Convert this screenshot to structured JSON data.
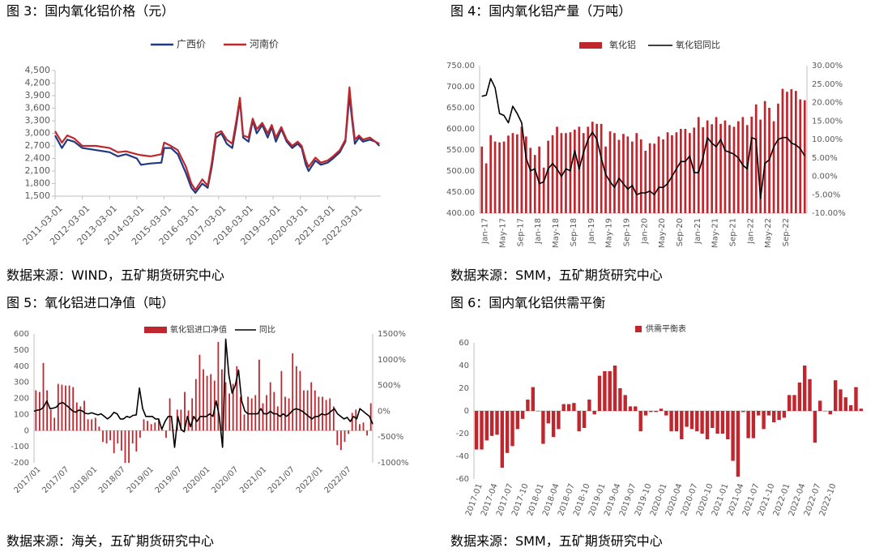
{
  "panels": [
    {
      "title": "图 3：国内氧化铝价格（元）",
      "source": "数据来源：WIND，五矿期货研究中心"
    },
    {
      "title": "图 4：国内氧化铝产量（万吨）",
      "source": "数据来源：SMM，五矿期货研究中心"
    },
    {
      "title": "图 5：氧化铝进口净值（吨）",
      "source": "数据来源：海关，五矿期货研究中心"
    },
    {
      "title": "图 6：国内氧化铝供需平衡",
      "source": "数据来源：SMM，五矿期货研究中心"
    }
  ],
  "colors": {
    "red": "#c0262d",
    "navy": "#1f3a80",
    "black": "#000000",
    "axis": "#bfbfbf",
    "text": "#595959"
  },
  "chart_data": [
    {
      "type": "line",
      "title": "图 3：国内氧化铝价格（元）",
      "ylim": [
        1500,
        4500
      ],
      "yticks": [
        "1,500",
        "1,800",
        "2,100",
        "2,400",
        "2,700",
        "3,000",
        "3,300",
        "3,600",
        "3,900",
        "4,200",
        "4,500"
      ],
      "xticks": [
        "2011-03-01",
        "2012-03-01",
        "2013-03-01",
        "2014-03-01",
        "2015-03-01",
        "2016-03-01",
        "2017-03-01",
        "2018-03-01",
        "2019-03-01",
        "2020-03-01",
        "2021-03-01",
        "2022-03-01"
      ],
      "xrange": [
        2011.0,
        2022.95
      ],
      "grid": false,
      "legend_position": "top",
      "series": [
        {
          "name": "广西价",
          "color": "#1f3a80",
          "points": [
            [
              2011.0,
              2950
            ],
            [
              2011.25,
              2650
            ],
            [
              2011.45,
              2850
            ],
            [
              2011.7,
              2800
            ],
            [
              2012.0,
              2650
            ],
            [
              2012.5,
              2600
            ],
            [
              2013.0,
              2550
            ],
            [
              2013.3,
              2450
            ],
            [
              2013.6,
              2500
            ],
            [
              2014.0,
              2400
            ],
            [
              2014.15,
              2250
            ],
            [
              2014.5,
              2280
            ],
            [
              2014.9,
              2300
            ],
            [
              2015.0,
              2650
            ],
            [
              2015.25,
              2650
            ],
            [
              2015.5,
              2500
            ],
            [
              2015.8,
              2050
            ],
            [
              2016.0,
              1700
            ],
            [
              2016.15,
              1580
            ],
            [
              2016.4,
              1800
            ],
            [
              2016.6,
              1700
            ],
            [
              2016.75,
              2200
            ],
            [
              2016.9,
              2900
            ],
            [
              2017.1,
              3000
            ],
            [
              2017.3,
              2750
            ],
            [
              2017.5,
              2650
            ],
            [
              2017.65,
              3200
            ],
            [
              2017.78,
              3800
            ],
            [
              2017.9,
              2900
            ],
            [
              2018.1,
              2800
            ],
            [
              2018.25,
              3300
            ],
            [
              2018.4,
              3000
            ],
            [
              2018.6,
              3200
            ],
            [
              2018.8,
              2900
            ],
            [
              2018.95,
              3150
            ],
            [
              2019.1,
              2800
            ],
            [
              2019.3,
              3100
            ],
            [
              2019.5,
              2800
            ],
            [
              2019.7,
              2650
            ],
            [
              2019.9,
              2750
            ],
            [
              2020.05,
              2650
            ],
            [
              2020.2,
              2250
            ],
            [
              2020.3,
              2100
            ],
            [
              2020.55,
              2350
            ],
            [
              2020.75,
              2250
            ],
            [
              2021.0,
              2300
            ],
            [
              2021.2,
              2400
            ],
            [
              2021.45,
              2550
            ],
            [
              2021.65,
              2800
            ],
            [
              2021.8,
              3900
            ],
            [
              2021.9,
              3300
            ],
            [
              2022.0,
              2750
            ],
            [
              2022.15,
              2900
            ],
            [
              2022.3,
              2800
            ],
            [
              2022.55,
              2850
            ],
            [
              2022.75,
              2800
            ],
            [
              2022.9,
              2700
            ]
          ]
        },
        {
          "name": "河南价",
          "color": "#c0262d",
          "points": [
            [
              2011.0,
              3050
            ],
            [
              2011.25,
              2780
            ],
            [
              2011.45,
              2950
            ],
            [
              2011.7,
              2880
            ],
            [
              2012.0,
              2700
            ],
            [
              2012.5,
              2700
            ],
            [
              2013.0,
              2650
            ],
            [
              2013.3,
              2550
            ],
            [
              2013.6,
              2570
            ],
            [
              2014.0,
              2500
            ],
            [
              2014.15,
              2480
            ],
            [
              2014.5,
              2450
            ],
            [
              2014.9,
              2500
            ],
            [
              2015.0,
              2780
            ],
            [
              2015.25,
              2700
            ],
            [
              2015.5,
              2600
            ],
            [
              2015.8,
              2200
            ],
            [
              2016.0,
              1800
            ],
            [
              2016.15,
              1650
            ],
            [
              2016.4,
              1900
            ],
            [
              2016.6,
              1750
            ],
            [
              2016.75,
              2300
            ],
            [
              2016.9,
              3000
            ],
            [
              2017.1,
              3050
            ],
            [
              2017.3,
              2850
            ],
            [
              2017.5,
              2750
            ],
            [
              2017.65,
              3300
            ],
            [
              2017.78,
              3850
            ],
            [
              2017.9,
              2950
            ],
            [
              2018.1,
              2900
            ],
            [
              2018.25,
              3350
            ],
            [
              2018.4,
              3100
            ],
            [
              2018.6,
              3250
            ],
            [
              2018.8,
              3000
            ],
            [
              2018.95,
              3200
            ],
            [
              2019.1,
              2900
            ],
            [
              2019.3,
              3150
            ],
            [
              2019.5,
              2850
            ],
            [
              2019.7,
              2700
            ],
            [
              2019.9,
              2800
            ],
            [
              2020.05,
              2700
            ],
            [
              2020.2,
              2350
            ],
            [
              2020.3,
              2200
            ],
            [
              2020.55,
              2420
            ],
            [
              2020.75,
              2300
            ],
            [
              2021.0,
              2350
            ],
            [
              2021.2,
              2450
            ],
            [
              2021.45,
              2600
            ],
            [
              2021.65,
              2850
            ],
            [
              2021.8,
              4100
            ],
            [
              2021.9,
              3400
            ],
            [
              2022.0,
              2850
            ],
            [
              2022.15,
              2950
            ],
            [
              2022.3,
              2850
            ],
            [
              2022.55,
              2900
            ],
            [
              2022.75,
              2800
            ],
            [
              2022.9,
              2750
            ]
          ]
        }
      ]
    },
    {
      "type": "bar",
      "title": "图 4：国内氧化铝产量（万吨）",
      "ylim": [
        400,
        750
      ],
      "yticks": [
        "400.00",
        "450.00",
        "500.00",
        "550.00",
        "600.00",
        "650.00",
        "700.00",
        "750.00"
      ],
      "y2lim": [
        -10,
        30
      ],
      "y2ticks": [
        "-10.00%",
        "-5.00%",
        "0.00%",
        "5.00%",
        "10.00%",
        "15.00%",
        "20.00%",
        "25.00%",
        "30.00%"
      ],
      "xticks": [
        "Jan-17",
        "May-17",
        "Sep-17",
        "Jan-18",
        "May-18",
        "Sep-18",
        "Jan-19",
        "May-19",
        "Sep-19",
        "Jan-20",
        "May-20",
        "Sep-20",
        "Jan-21",
        "May-21",
        "Sep-21",
        "Jan-22",
        "May-22",
        "Sep-22"
      ],
      "legend_position": "top",
      "series": [
        {
          "name": "氧化铝",
          "kind": "bar",
          "color": "#c0262d",
          "values": [
            558,
            518,
            585,
            570,
            568,
            570,
            584,
            590,
            587,
            605,
            582,
            555,
            538,
            558,
            508,
            572,
            585,
            605,
            590,
            590,
            592,
            598,
            605,
            590,
            605,
            617,
            612,
            612,
            558,
            594,
            590,
            574,
            588,
            582,
            570,
            590,
            575,
            548,
            566,
            565,
            582,
            575,
            592,
            585,
            592,
            600,
            600,
            590,
            603,
            628,
            604,
            620,
            611,
            628,
            612,
            620,
            609,
            605,
            618,
            628,
            609,
            629,
            658,
            622,
            666,
            650,
            618,
            660,
            695,
            688,
            694,
            690,
            670,
            668
          ]
        },
        {
          "name": "氧化铝同比",
          "kind": "line",
          "color": "#000000",
          "values": [
            21.7,
            22,
            26.5,
            24,
            17,
            16.5,
            14.5,
            19,
            17,
            14.5,
            5,
            1.5,
            2,
            -2,
            -1.5,
            2,
            3.5,
            2,
            0,
            2,
            1.5,
            7,
            2,
            6.5,
            10,
            12,
            10,
            5,
            0.5,
            -1.5,
            -3,
            -0.5,
            -2,
            -3.5,
            -2.5,
            -5,
            -4.5,
            -4.5,
            -4,
            -5,
            -3,
            -3,
            -2,
            0,
            2,
            4,
            4,
            5.5,
            1,
            1,
            5,
            10.5,
            9,
            8,
            10,
            7,
            6.5,
            6,
            5,
            3,
            2,
            10.5,
            10,
            -6,
            3.5,
            4.5,
            8,
            10,
            10.5,
            10.5,
            9,
            8.5,
            7.5,
            5.5
          ]
        }
      ]
    },
    {
      "type": "bar",
      "title": "图 5：氧化铝进口净值（吨）",
      "ylim": [
        -200,
        600
      ],
      "yticks": [
        "-200",
        "-100",
        "0",
        "100",
        "200",
        "300",
        "400",
        "500",
        "600"
      ],
      "y2lim": [
        -1000,
        1500
      ],
      "y2ticks": [
        "-1000%",
        "-500%",
        "0%",
        "500%",
        "1000%",
        "1500%"
      ],
      "xticks": [
        "2017/01",
        "2017/07",
        "2018/01",
        "2018/07",
        "2019/01",
        "2019/07",
        "2020/01",
        "2020/07",
        "2021/01",
        "2021/07",
        "2022/01",
        "2022/07"
      ],
      "legend_position": "top",
      "series": [
        {
          "name": "氧化铝进口净值",
          "kind": "bar",
          "color": "#c0262d",
          "values": [
            250,
            240,
            420,
            250,
            130,
            80,
            290,
            285,
            280,
            280,
            270,
            175,
            150,
            185,
            70,
            70,
            80,
            25,
            -70,
            -80,
            -60,
            -140,
            -80,
            -125,
            -200,
            -200,
            -80,
            -130,
            -45,
            70,
            60,
            40,
            50,
            70,
            5,
            -45,
            200,
            5,
            130,
            130,
            240,
            125,
            200,
            320,
            470,
            380,
            340,
            350,
            310,
            550,
            380,
            300,
            230,
            290,
            400,
            210,
            100,
            210,
            200,
            220,
            440,
            170,
            220,
            300,
            240,
            150,
            370,
            210,
            200,
            480,
            400,
            370,
            250,
            250,
            300,
            250,
            210,
            210,
            190,
            200,
            150,
            -90,
            -120,
            -70,
            -20,
            110,
            130,
            40,
            50,
            -30,
            170
          ]
        },
        {
          "name": "同比",
          "kind": "line",
          "color": "#000000",
          "values": [
            0,
            20,
            30,
            80,
            200,
            50,
            60,
            80,
            150,
            170,
            120,
            70,
            10,
            -20,
            20,
            10,
            -40,
            -50,
            -30,
            -50,
            -70,
            -50,
            -100,
            -150,
            -100,
            -20,
            -50,
            -150,
            -150,
            -100,
            -120,
            -80,
            -70,
            450,
            50,
            -100,
            -100,
            -100,
            -150,
            -150,
            -350,
            -200,
            -100,
            -100,
            -700,
            -100,
            -350,
            -400,
            -100,
            -300,
            -100,
            -200,
            -100,
            -100,
            -100,
            -50,
            -100,
            200,
            -100,
            -700,
            1400,
            700,
            350,
            500,
            800,
            200,
            0,
            -50,
            -50,
            -50,
            -50,
            50,
            -50,
            -50,
            0,
            -50,
            -50,
            -100,
            -50,
            -100,
            -50,
            20,
            50,
            30,
            0,
            -50,
            -100,
            -150,
            -100,
            -100,
            -50,
            -70,
            -50,
            0,
            50,
            -50,
            -100,
            -150,
            -120,
            -200,
            -100,
            -150,
            50,
            0,
            -50,
            -100,
            -250
          ]
        }
      ]
    },
    {
      "type": "bar",
      "title": "图 6：国内氧化铝供需平衡",
      "ylim": [
        -60,
        60
      ],
      "yticks": [
        "-60",
        "-40",
        "-20",
        "0",
        "20",
        "40",
        "60"
      ],
      "xticks": [
        "2017-01",
        "2017-04",
        "2017-07",
        "2017-10",
        "2018-01",
        "2018-04",
        "2018-07",
        "2018-10",
        "2019-01",
        "2019-04",
        "2019-07",
        "2019-10",
        "2020-01",
        "2020-04",
        "2020-07",
        "2020-10",
        "2021-01",
        "2021-04",
        "2021-07",
        "2021-10",
        "2022-01",
        "2022-04",
        "2022-07",
        "2022-10"
      ],
      "legend_position": "top",
      "series": [
        {
          "name": "供需平衡表",
          "kind": "bar",
          "color": "#c0262d",
          "values": [
            -34,
            -34,
            -26,
            -22,
            -21,
            -50,
            -37,
            -31,
            -16,
            -7,
            10,
            21,
            0,
            -29,
            -11,
            -23,
            -16,
            6,
            6,
            7,
            -18,
            -15,
            10,
            -3,
            31,
            35,
            35,
            40,
            20,
            14,
            4,
            4,
            -18,
            -4,
            -1,
            -1,
            2,
            -4,
            -18,
            -18,
            -25,
            -14,
            -16,
            -18,
            -20,
            -25,
            -15,
            -20,
            -20,
            -25,
            -44,
            -58,
            -1,
            -24,
            -24,
            -4,
            -16,
            -4,
            -10,
            -8,
            -6,
            14,
            14,
            25,
            40,
            28,
            -28,
            9,
            0,
            -3,
            27,
            19,
            12,
            5,
            21,
            2
          ]
        }
      ]
    }
  ]
}
